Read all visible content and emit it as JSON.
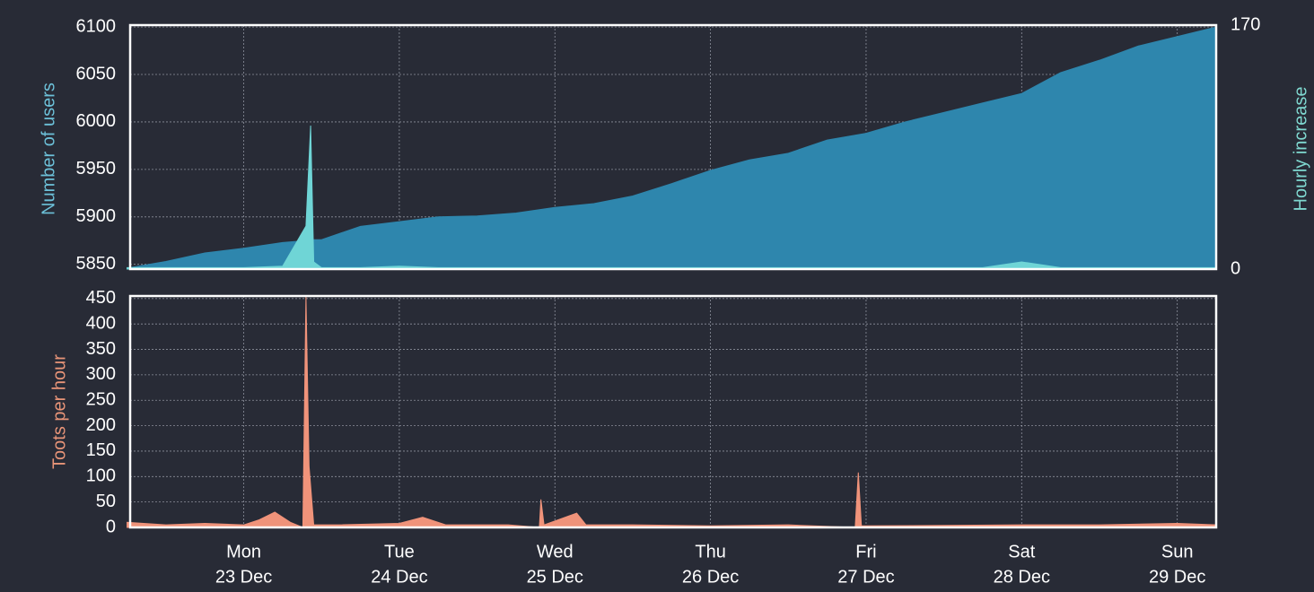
{
  "chart_data": [
    {
      "type": "area",
      "y_label": "Number of users",
      "y2_label": "Hourly increase",
      "x": [
        -0.75,
        -0.5,
        -0.25,
        0,
        0.25,
        0.4,
        0.43,
        0.45,
        0.5,
        0.75,
        1,
        1.25,
        1.5,
        1.75,
        2,
        2.25,
        2.5,
        2.75,
        3,
        3.25,
        3.5,
        3.75,
        4,
        4.25,
        4.5,
        4.75,
        5,
        5.25,
        5.5,
        5.75,
        6,
        6.25
      ],
      "xlim": [
        -0.73,
        6.25
      ],
      "ylim": [
        5845,
        6102
      ],
      "yticks": [
        5850,
        5900,
        5950,
        6000,
        6050,
        6100
      ],
      "y2lim": [
        0,
        170
      ],
      "y2ticks": [
        0,
        170
      ],
      "grid": true,
      "series": [
        {
          "name": "Number of users",
          "color": "#2e86ad",
          "values": [
            5846,
            5853,
            5862,
            5867,
            5873,
            5875,
            5876,
            5876,
            5876,
            5890,
            5895,
            5900,
            5901,
            5904,
            5910,
            5914,
            5922,
            5935,
            5949,
            5960,
            5967,
            5981,
            5988,
            6000,
            6010,
            6020,
            6030,
            6052,
            6065,
            6080,
            6090,
            6100
          ]
        },
        {
          "name": "Hourly increase",
          "color": "#6fd5d6",
          "axis": "y2",
          "values": [
            1,
            1,
            1,
            1,
            2,
            30,
            100,
            5,
            1,
            1,
            2,
            1,
            1,
            1,
            1,
            1,
            1,
            1,
            1,
            1,
            1,
            1,
            1,
            1,
            1,
            1,
            5,
            1,
            1,
            1,
            1,
            1
          ]
        }
      ]
    },
    {
      "type": "area",
      "y_label": "Toots per hour",
      "x": [
        -0.75,
        -0.5,
        -0.25,
        0,
        0.1,
        0.2,
        0.3,
        0.38,
        0.4,
        0.42,
        0.45,
        0.6,
        1,
        1.15,
        1.3,
        1.7,
        1.9,
        1.91,
        1.93,
        2.14,
        2.2,
        2.5,
        3,
        3.5,
        3.93,
        3.95,
        3.97,
        4.5,
        5,
        5.5,
        6,
        6.25
      ],
      "xlim": [
        -0.73,
        6.25
      ],
      "xticks": [
        {
          "value": 0,
          "label": "23 Dec",
          "weekday": "Mon"
        },
        {
          "value": 1,
          "label": "24 Dec",
          "weekday": "Tue"
        },
        {
          "value": 2,
          "label": "25 Dec",
          "weekday": "Wed"
        },
        {
          "value": 3,
          "label": "26 Dec",
          "weekday": "Thu"
        },
        {
          "value": 4,
          "label": "27 Dec",
          "weekday": "Fri"
        },
        {
          "value": 5,
          "label": "28 Dec",
          "weekday": "Sat"
        },
        {
          "value": 6,
          "label": "29 Dec",
          "weekday": "Sun"
        }
      ],
      "ylim": [
        0,
        455
      ],
      "yticks": [
        0,
        50,
        100,
        150,
        200,
        250,
        300,
        350,
        400,
        450
      ],
      "grid": true,
      "series": [
        {
          "name": "Toots per hour",
          "color": "#f0937a",
          "values": [
            10,
            5,
            8,
            5,
            15,
            30,
            10,
            0,
            455,
            120,
            5,
            5,
            8,
            20,
            5,
            5,
            0,
            55,
            5,
            28,
            5,
            5,
            3,
            5,
            0,
            108,
            3,
            4,
            5,
            5,
            8,
            5
          ]
        }
      ]
    }
  ]
}
